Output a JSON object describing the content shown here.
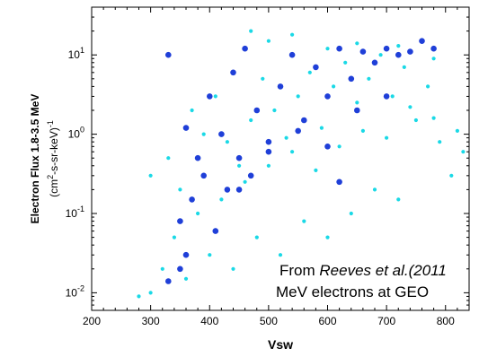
{
  "chart_data": {
    "type": "scatter",
    "xlabel": "Vsw",
    "ylabel": {
      "line1": "Electron Flux  1.8-3.5 MeV",
      "units_open": "(cm",
      "units_sup1": "2",
      "units_mid": "-s-sr-keV)",
      "units_sup2": "-1"
    },
    "xlim": [
      200,
      840
    ],
    "ylim": [
      0.006,
      40
    ],
    "yscale": "log",
    "x_ticks": [
      "200",
      "300",
      "400",
      "500",
      "600",
      "700",
      "800"
    ],
    "y_ticks": [
      {
        "base": "10",
        "exp": "-2"
      },
      {
        "base": "10",
        "exp": "-1"
      },
      {
        "base": "10",
        "exp": "0"
      },
      {
        "base": "10",
        "exp": "1"
      }
    ],
    "annotation": {
      "line1_plain": "From ",
      "line1_italic": "Reeves et al.(2011",
      "line2": "MeV electrons at GEO"
    },
    "series": [
      {
        "color": "#1ad9e6",
        "marker_size": "small",
        "points": [
          [
            300,
            0.3
          ],
          [
            330,
            0.5
          ],
          [
            350,
            0.2
          ],
          [
            370,
            2
          ],
          [
            390,
            1
          ],
          [
            410,
            3
          ],
          [
            430,
            0.8
          ],
          [
            450,
            0.4
          ],
          [
            470,
            1.5
          ],
          [
            490,
            5
          ],
          [
            510,
            2
          ],
          [
            530,
            0.9
          ],
          [
            550,
            3
          ],
          [
            570,
            6
          ],
          [
            590,
            1.2
          ],
          [
            610,
            4
          ],
          [
            630,
            8
          ],
          [
            650,
            2.5
          ],
          [
            670,
            5
          ],
          [
            690,
            10
          ],
          [
            710,
            3
          ],
          [
            730,
            7
          ],
          [
            750,
            1.5
          ],
          [
            770,
            4
          ],
          [
            790,
            0.8
          ],
          [
            810,
            0.3
          ],
          [
            830,
            0.6
          ],
          [
            720,
            0.15
          ],
          [
            680,
            0.2
          ],
          [
            640,
            0.1
          ],
          [
            600,
            0.05
          ],
          [
            560,
            0.08
          ],
          [
            520,
            0.03
          ],
          [
            480,
            0.05
          ],
          [
            440,
            0.02
          ],
          [
            400,
            0.03
          ],
          [
            360,
            0.015
          ],
          [
            320,
            0.02
          ],
          [
            280,
            0.009
          ],
          [
            300,
            0.01
          ],
          [
            340,
            0.05
          ],
          [
            380,
            0.1
          ],
          [
            420,
            0.15
          ],
          [
            460,
            0.25
          ],
          [
            500,
            0.4
          ],
          [
            540,
            0.6
          ],
          [
            580,
            0.35
          ],
          [
            620,
            0.7
          ],
          [
            660,
            1.1
          ],
          [
            700,
            0.9
          ],
          [
            740,
            2.2
          ],
          [
            780,
            1.6
          ],
          [
            820,
            1.1
          ],
          [
            470,
            20
          ],
          [
            500,
            15
          ],
          [
            540,
            18
          ],
          [
            600,
            12
          ],
          [
            650,
            14
          ],
          [
            720,
            13
          ],
          [
            780,
            9
          ]
        ]
      },
      {
        "color": "#1f3fd8",
        "marker_size": "large",
        "points": [
          [
            330,
            10
          ],
          [
            360,
            1.2
          ],
          [
            380,
            0.5
          ],
          [
            400,
            3
          ],
          [
            420,
            1
          ],
          [
            440,
            6
          ],
          [
            460,
            12
          ],
          [
            480,
            2
          ],
          [
            500,
            0.8
          ],
          [
            520,
            4
          ],
          [
            540,
            10
          ],
          [
            560,
            1.5
          ],
          [
            580,
            7
          ],
          [
            600,
            3
          ],
          [
            620,
            12
          ],
          [
            640,
            5
          ],
          [
            660,
            11
          ],
          [
            680,
            8
          ],
          [
            700,
            12
          ],
          [
            720,
            10
          ],
          [
            740,
            11
          ],
          [
            760,
            15
          ],
          [
            780,
            12
          ],
          [
            350,
            0.08
          ],
          [
            370,
            0.15
          ],
          [
            390,
            0.3
          ],
          [
            410,
            0.06
          ],
          [
            430,
            0.2
          ],
          [
            450,
            0.5
          ],
          [
            470,
            0.3
          ],
          [
            330,
            0.014
          ],
          [
            360,
            0.03
          ],
          [
            350,
            0.02
          ],
          [
            450,
            0.2
          ],
          [
            500,
            0.6
          ],
          [
            550,
            1.1
          ],
          [
            600,
            0.7
          ],
          [
            650,
            2
          ],
          [
            700,
            3
          ],
          [
            620,
            0.25
          ]
        ]
      }
    ]
  }
}
